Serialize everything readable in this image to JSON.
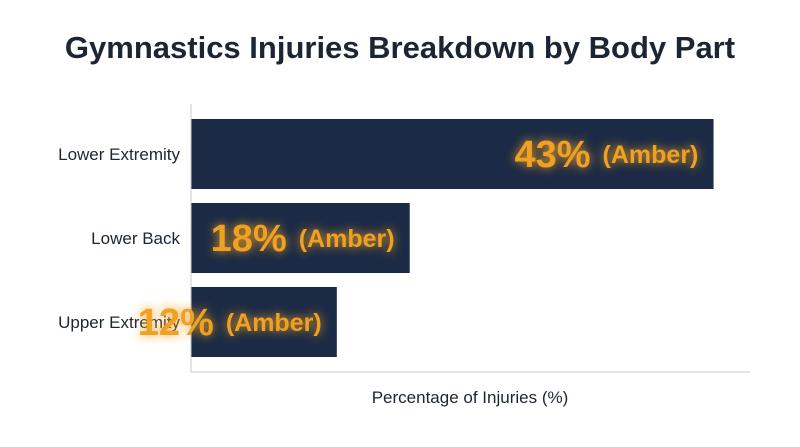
{
  "chart_data": {
    "type": "bar",
    "orientation": "horizontal",
    "title": "Gymnastics Injuries Breakdown by Body Part",
    "xlabel": "Percentage of Injuries (%)",
    "ylabel": "",
    "categories": [
      "Lower Extremity",
      "Lower Back",
      "Upper Extremity"
    ],
    "values": [
      43,
      18,
      12
    ],
    "value_labels": [
      "43%",
      "18%",
      "12%"
    ],
    "annotations": [
      "(Amber)",
      "(Amber)",
      "(Amber)"
    ],
    "xlim": [
      0,
      46
    ],
    "grid": false,
    "legend": "none",
    "colors": {
      "bar": "#1b2a45",
      "label": "#f0a020",
      "glow": "#ffc34d",
      "axis": "#c8c8c8",
      "text": "#1c2533"
    }
  }
}
